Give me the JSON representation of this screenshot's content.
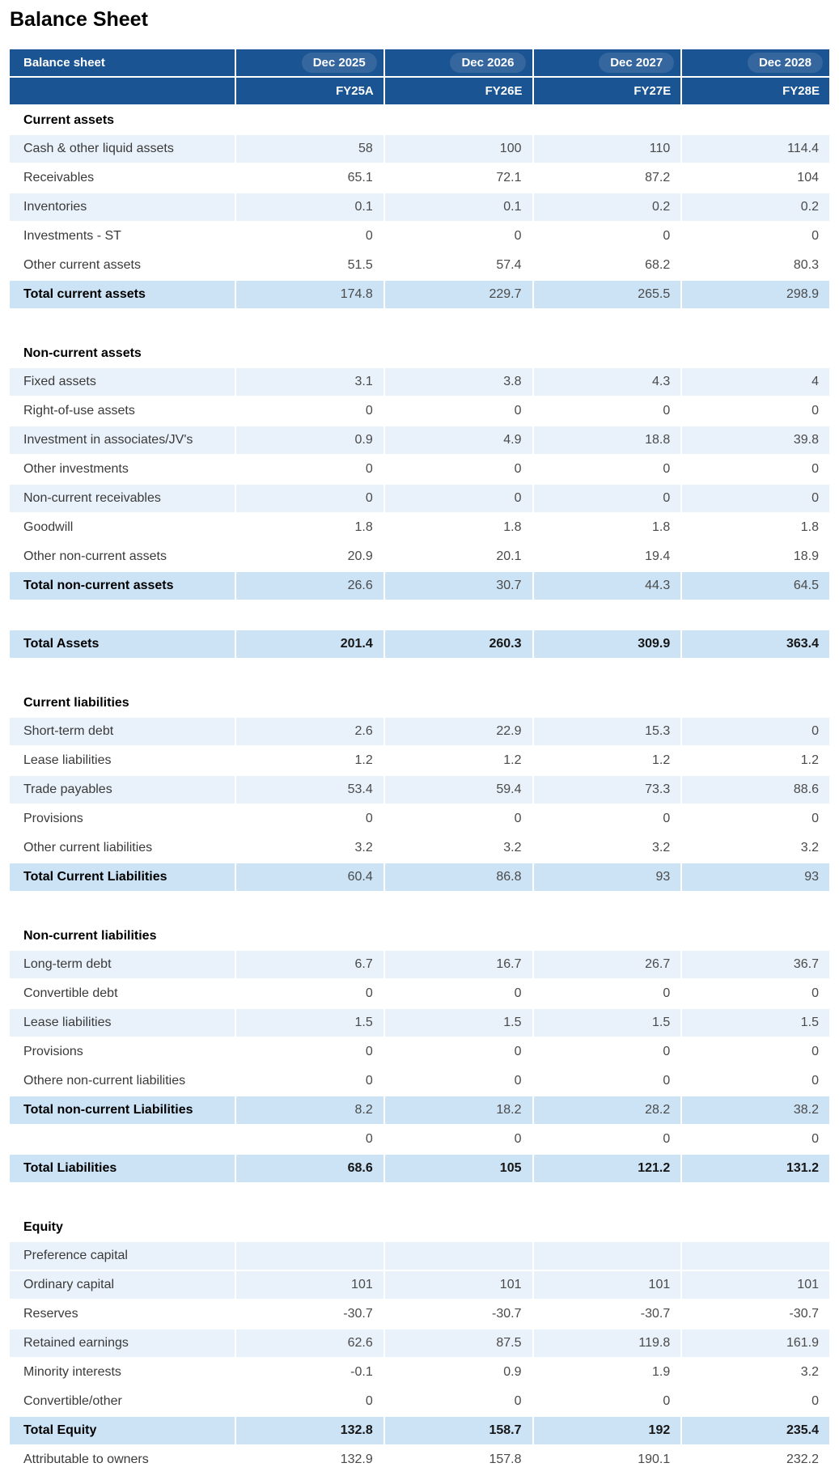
{
  "page_title": "Balance Sheet",
  "colors": {
    "header_navy": "#1a5492",
    "period_pill_blue": "#35669e",
    "row_light_blue": "#e9f2fb",
    "total_row_blue": "#cce3f6"
  },
  "table": {
    "header": {
      "label": "Balance sheet",
      "periods": [
        "Dec 2025",
        "Dec 2026",
        "Dec 2027",
        "Dec 2028"
      ],
      "fiscal_labels": [
        "FY25A",
        "FY26E",
        "FY27E",
        "FY28E"
      ]
    },
    "sections": [
      {
        "title": "Current assets",
        "rows": [
          {
            "label": "Cash & other liquid assets",
            "values": [
              "58",
              "100",
              "110",
              "114.4"
            ],
            "style": "blue"
          },
          {
            "label": "Receivables",
            "values": [
              "65.1",
              "72.1",
              "87.2",
              "104"
            ],
            "style": "white"
          },
          {
            "label": "Inventories",
            "values": [
              "0.1",
              "0.1",
              "0.2",
              "0.2"
            ],
            "style": "blue"
          },
          {
            "label": "Investments - ST",
            "values": [
              "0",
              "0",
              "0",
              "0"
            ],
            "style": "white"
          },
          {
            "label": "Other current assets",
            "values": [
              "51.5",
              "57.4",
              "68.2",
              "80.3"
            ],
            "style": "white"
          },
          {
            "label": "Total current assets",
            "values": [
              "174.8",
              "229.7",
              "265.5",
              "298.9"
            ],
            "style": "subtotal"
          }
        ]
      },
      {
        "title": "Non-current assets",
        "rows": [
          {
            "label": "Fixed assets",
            "values": [
              "3.1",
              "3.8",
              "4.3",
              "4"
            ],
            "style": "blue"
          },
          {
            "label": "Right-of-use assets",
            "values": [
              "0",
              "0",
              "0",
              "0"
            ],
            "style": "white"
          },
          {
            "label": "Investment in associates/JV's",
            "values": [
              "0.9",
              "4.9",
              "18.8",
              "39.8"
            ],
            "style": "blue"
          },
          {
            "label": "Other investments",
            "values": [
              "0",
              "0",
              "0",
              "0"
            ],
            "style": "white"
          },
          {
            "label": "Non-current receivables",
            "values": [
              "0",
              "0",
              "0",
              "0"
            ],
            "style": "blue"
          },
          {
            "label": "Goodwill",
            "values": [
              "1.8",
              "1.8",
              "1.8",
              "1.8"
            ],
            "style": "white"
          },
          {
            "label": "Other non-current assets",
            "values": [
              "20.9",
              "20.1",
              "19.4",
              "18.9"
            ],
            "style": "white"
          },
          {
            "label": "Total non-current assets",
            "values": [
              "26.6",
              "30.7",
              "44.3",
              "64.5"
            ],
            "style": "subtotal"
          }
        ]
      },
      {
        "title": "",
        "rows": [
          {
            "label": "Total Assets",
            "values": [
              "201.4",
              "260.3",
              "309.9",
              "363.4"
            ],
            "style": "grandtotal"
          }
        ]
      },
      {
        "title": "Current liabilities",
        "rows": [
          {
            "label": "Short-term debt",
            "values": [
              "2.6",
              "22.9",
              "15.3",
              "0"
            ],
            "style": "blue"
          },
          {
            "label": "Lease liabilities",
            "values": [
              "1.2",
              "1.2",
              "1.2",
              "1.2"
            ],
            "style": "white"
          },
          {
            "label": "Trade payables",
            "values": [
              "53.4",
              "59.4",
              "73.3",
              "88.6"
            ],
            "style": "blue"
          },
          {
            "label": "Provisions",
            "values": [
              "0",
              "0",
              "0",
              "0"
            ],
            "style": "white"
          },
          {
            "label": "Other current liabilities",
            "values": [
              "3.2",
              "3.2",
              "3.2",
              "3.2"
            ],
            "style": "white"
          },
          {
            "label": "Total Current Liabilities",
            "values": [
              "60.4",
              "86.8",
              "93",
              "93"
            ],
            "style": "subtotal"
          }
        ]
      },
      {
        "title": "Non-current liabilities",
        "rows": [
          {
            "label": "Long-term debt",
            "values": [
              "6.7",
              "16.7",
              "26.7",
              "36.7"
            ],
            "style": "blue"
          },
          {
            "label": "Convertible debt",
            "values": [
              "0",
              "0",
              "0",
              "0"
            ],
            "style": "white"
          },
          {
            "label": "Lease liabilities",
            "values": [
              "1.5",
              "1.5",
              "1.5",
              "1.5"
            ],
            "style": "blue"
          },
          {
            "label": "Provisions",
            "values": [
              "0",
              "0",
              "0",
              "0"
            ],
            "style": "white"
          },
          {
            "label": "Othere non-current liabilities",
            "values": [
              "0",
              "0",
              "0",
              "0"
            ],
            "style": "white"
          },
          {
            "label": "Total non-current Liabilities",
            "values": [
              "8.2",
              "18.2",
              "28.2",
              "38.2"
            ],
            "style": "subtotal"
          },
          {
            "label": "",
            "values": [
              "0",
              "0",
              "0",
              "0"
            ],
            "style": "white"
          },
          {
            "label": "Total Liabilities",
            "values": [
              "68.6",
              "105",
              "121.2",
              "131.2"
            ],
            "style": "grandtotal"
          }
        ]
      },
      {
        "title": "Equity",
        "rows": [
          {
            "label": "Preference capital",
            "values": [
              "",
              "",
              "",
              ""
            ],
            "style": "blue"
          },
          {
            "label": "Ordinary capital",
            "values": [
              "101",
              "101",
              "101",
              "101"
            ],
            "style": "blue"
          },
          {
            "label": "Reserves",
            "values": [
              "-30.7",
              "-30.7",
              "-30.7",
              "-30.7"
            ],
            "style": "white"
          },
          {
            "label": "Retained earnings",
            "values": [
              "62.6",
              "87.5",
              "119.8",
              "161.9"
            ],
            "style": "blue"
          },
          {
            "label": "Minority interests",
            "values": [
              "-0.1",
              "0.9",
              "1.9",
              "3.2"
            ],
            "style": "white"
          },
          {
            "label": "Convertible/other",
            "values": [
              "0",
              "0",
              "0",
              "0"
            ],
            "style": "white"
          },
          {
            "label": "Total Equity",
            "values": [
              "132.8",
              "158.7",
              "192",
              "235.4"
            ],
            "style": "grandtotal"
          },
          {
            "label": "Attributable to owners",
            "values": [
              "132.9",
              "157.8",
              "190.1",
              "232.2"
            ],
            "style": "white"
          }
        ]
      }
    ]
  }
}
